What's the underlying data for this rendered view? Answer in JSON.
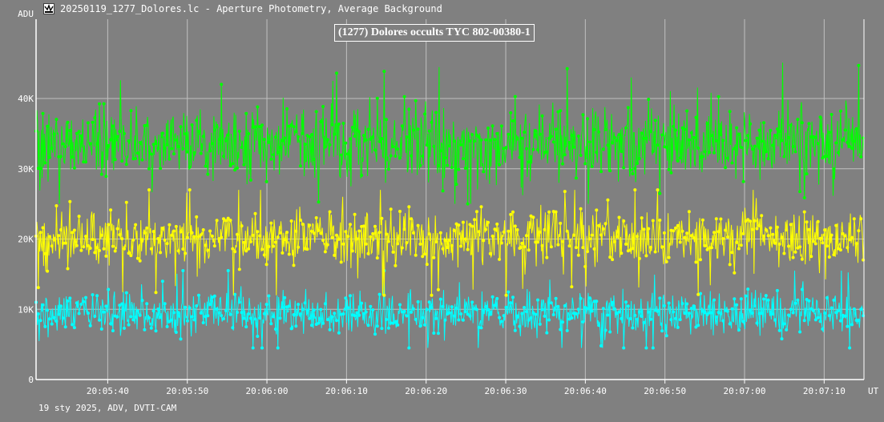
{
  "window": {
    "title": "20250119_1277_Dolores.lc - Aperture Photometry, Average Background",
    "icon": "lightcurve-app-icon"
  },
  "footer": {
    "text": "19 sty 2025, ADV, DVTI-CAM"
  },
  "chart_data": {
    "type": "line",
    "title": "(1277) Dolores occults TYC 802-00380-1",
    "ylabel": "ADU",
    "xlabel": "UT",
    "x_range": [
      "20:05:31",
      "20:07:15"
    ],
    "ylim": [
      0,
      40000
    ],
    "y_ticks": [
      {
        "value": 0,
        "label": "0"
      },
      {
        "value": 10000,
        "label": "10K"
      },
      {
        "value": 20000,
        "label": "20K"
      },
      {
        "value": 30000,
        "label": "30K"
      },
      {
        "value": 40000,
        "label": "40K"
      }
    ],
    "x_ticks": [
      "20:05:40",
      "20:05:50",
      "20:06:00",
      "20:06:10",
      "20:06:20",
      "20:06:30",
      "20:06:40",
      "20:06:50",
      "20:07:00",
      "20:07:10"
    ],
    "grid": true,
    "series": [
      {
        "color": "#00ff00",
        "mean": 33500,
        "spread": 2600,
        "min": 25000,
        "max": 46500
      },
      {
        "color": "#ffff00",
        "mean": 20200,
        "spread": 2000,
        "min": 12000,
        "max": 27000
      },
      {
        "color": "#00ffff",
        "mean": 9500,
        "spread": 1500,
        "min": 4500,
        "max": 15500
      }
    ]
  }
}
